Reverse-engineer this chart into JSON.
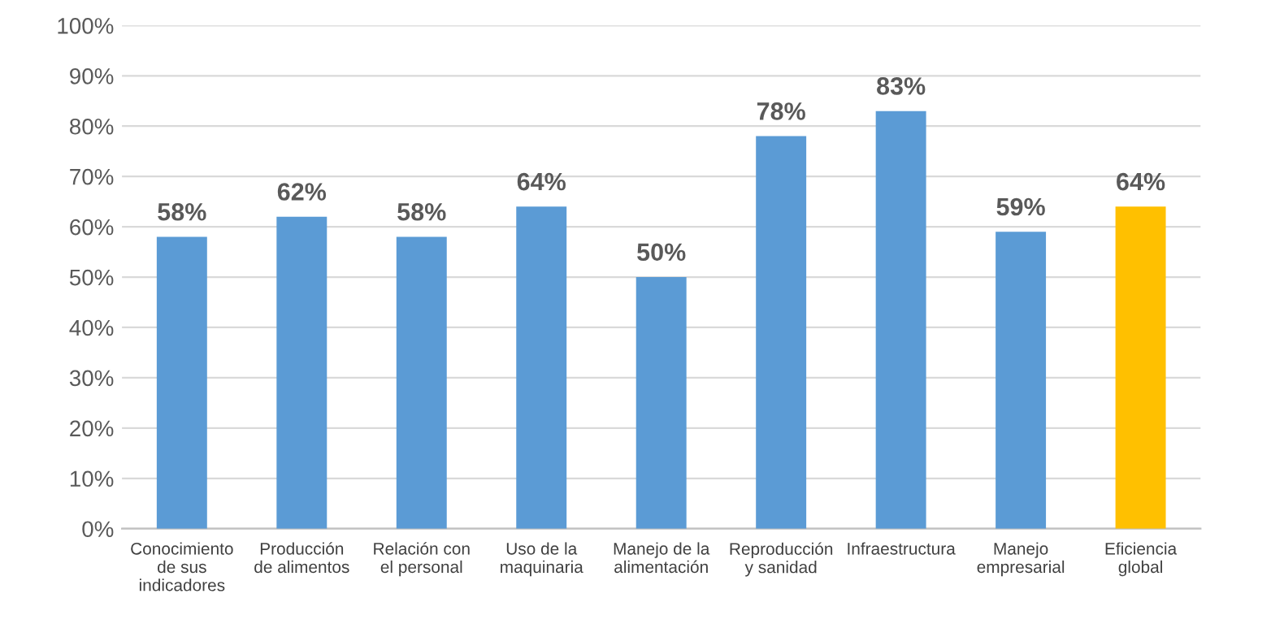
{
  "chart_data": {
    "type": "bar",
    "categories": [
      "Conocimiento de sus indicadores",
      "Producción de alimentos",
      "Relación con el personal",
      "Uso de la maquinaria",
      "Manejo de la alimentación",
      "Reproducción y sanidad",
      "Infraestructura",
      "Manejo empresarial",
      "Eficiencia global"
    ],
    "values": [
      58,
      62,
      58,
      64,
      50,
      78,
      83,
      59,
      64
    ],
    "colors": [
      "#5b9bd5",
      "#5b9bd5",
      "#5b9bd5",
      "#5b9bd5",
      "#5b9bd5",
      "#5b9bd5",
      "#5b9bd5",
      "#5b9bd5",
      "#ffc000"
    ],
    "value_labels": [
      "58%",
      "62%",
      "58%",
      "64%",
      "50%",
      "78%",
      "83%",
      "59%",
      "64%"
    ],
    "ylim": [
      0,
      100
    ],
    "yticks": [
      {
        "value": 0,
        "label": "0%"
      },
      {
        "value": 10,
        "label": "10%"
      },
      {
        "value": 20,
        "label": "20%"
      },
      {
        "value": 30,
        "label": "30%"
      },
      {
        "value": 40,
        "label": "40%"
      },
      {
        "value": 50,
        "label": "50%"
      },
      {
        "value": 60,
        "label": "60%"
      },
      {
        "value": 70,
        "label": "70%"
      },
      {
        "value": 80,
        "label": "80%"
      },
      {
        "value": 90,
        "label": "90%"
      },
      {
        "value": 100,
        "label": "100%"
      }
    ],
    "grid": "y",
    "legend": false
  }
}
